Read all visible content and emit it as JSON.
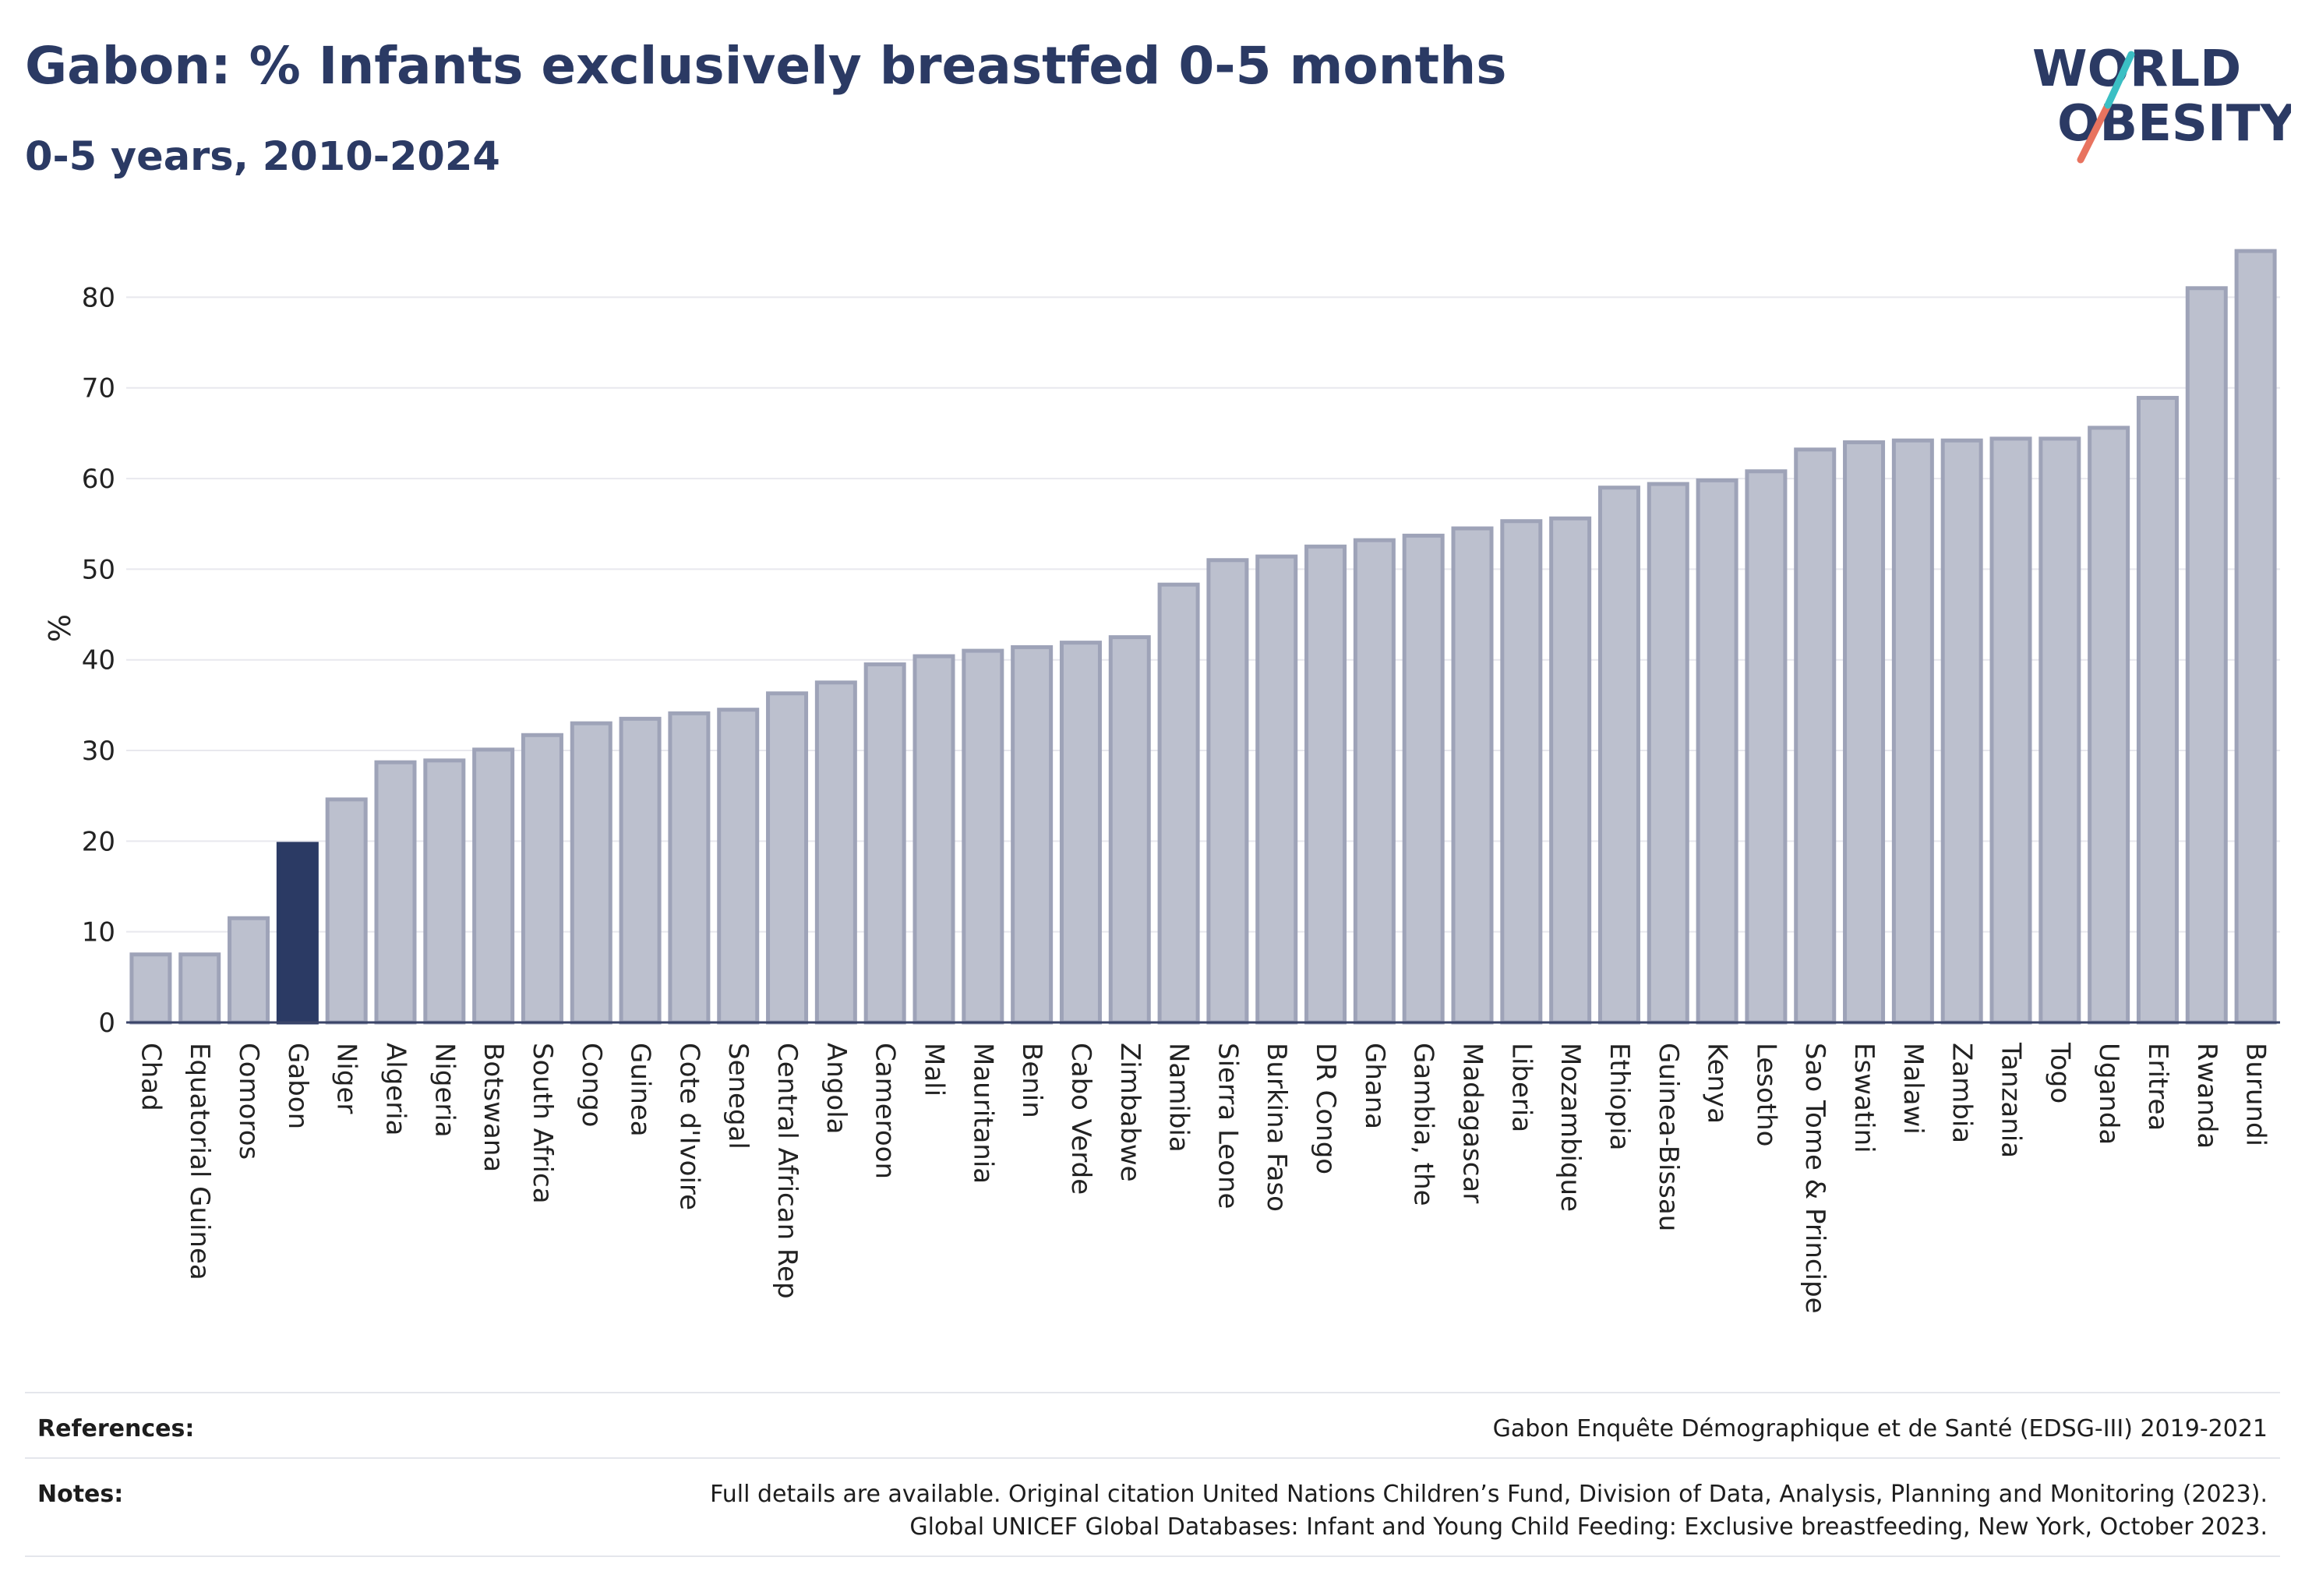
{
  "header": {
    "title": "Gabon: % Infants exclusively breastfed 0-5 months",
    "subtitle": "0-5 years, 2010-2024"
  },
  "logo": {
    "line1": "WORLD",
    "line2": "OBESITY",
    "accent_teal": "#3bbfc4",
    "accent_coral": "#e8735f",
    "text_color": "#2b3a64"
  },
  "colors": {
    "highlight": "#2b3a64",
    "bar_fill": "#bcc0ce",
    "bar_stroke": "#9ea3b8",
    "grid": "#e8e8ee"
  },
  "chart_data": {
    "type": "bar",
    "ylabel": "%",
    "ylim": [
      0,
      87
    ],
    "yticks": [
      0,
      10,
      20,
      30,
      40,
      50,
      60,
      70,
      80
    ],
    "grid": true,
    "highlight": "Gabon",
    "categories": [
      "Chad",
      "Equatorial Guinea",
      "Comoros",
      "Gabon",
      "Niger",
      "Algeria",
      "Nigeria",
      "Botswana",
      "South Africa",
      "Congo",
      "Guinea",
      "Cote d'Ivoire",
      "Senegal",
      "Central African Rep",
      "Angola",
      "Cameroon",
      "Mali",
      "Mauritania",
      "Benin",
      "Cabo Verde",
      "Zimbabwe",
      "Namibia",
      "Sierra Leone",
      "Burkina Faso",
      "DR Congo",
      "Ghana",
      "Gambia, the",
      "Madagascar",
      "Liberia",
      "Mozambique",
      "Ethiopia",
      "Guinea-Bissau",
      "Kenya",
      "Lesotho",
      "Sao Tome & Principe",
      "Eswatini",
      "Malawi",
      "Zambia",
      "Tanzania",
      "Togo",
      "Uganda",
      "Eritrea",
      "Rwanda",
      "Burundi"
    ],
    "values": [
      7.5,
      7.5,
      11.5,
      19.7,
      24.6,
      28.7,
      28.9,
      30.1,
      31.7,
      33.0,
      33.5,
      34.1,
      34.5,
      36.3,
      37.5,
      39.5,
      40.4,
      41.0,
      41.4,
      41.9,
      42.5,
      48.3,
      51.0,
      51.4,
      52.5,
      53.2,
      53.7,
      54.5,
      55.3,
      55.6,
      59.0,
      59.4,
      59.8,
      60.8,
      63.2,
      64.0,
      64.2,
      64.2,
      64.4,
      64.4,
      65.6,
      68.9,
      81.0,
      85.1
    ]
  },
  "references": {
    "label": "References:",
    "text": "Gabon Enquête Démographique et de Santé (EDSG-III) 2019-2021"
  },
  "notes": {
    "label": "Notes:",
    "line1": "Full details are available. Original citation United Nations Children’s Fund, Division of Data, Analysis, Planning and Monitoring (2023).",
    "line2": "Global UNICEF Global Databases: Infant and Young Child Feeding: Exclusive breastfeeding, New York, October 2023."
  }
}
